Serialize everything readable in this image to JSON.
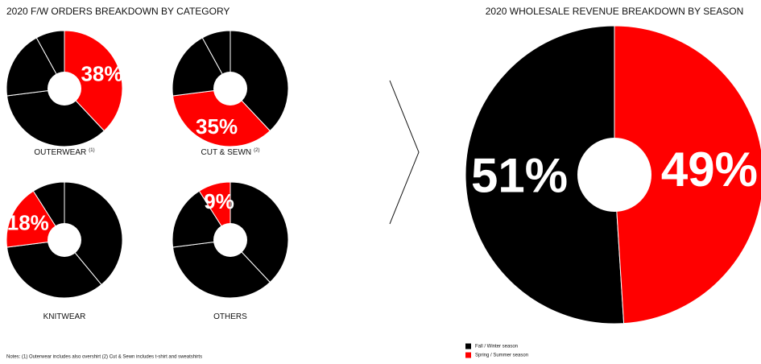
{
  "left_title": "2020 F/W ORDERS BREAKDOWN BY CATEGORY",
  "notes": "Notes: (1) Outerwear includes also overshirt (2) Cut & Sewn includes t-shirt and sweatshirts",
  "chart_data": [
    {
      "type": "pie",
      "title": "OUTERWEAR",
      "title_note": "(1)",
      "values": [
        38,
        35,
        19,
        8
      ],
      "colors": [
        "#ff0000",
        "#000000",
        "#000000",
        "#000000"
      ],
      "value_labels": [
        "38%",
        null,
        null,
        null
      ],
      "hole": true,
      "direction": "clockwise"
    },
    {
      "type": "pie",
      "title": "CUT & SEWN",
      "title_note": "(2)",
      "values": [
        38,
        35,
        19,
        8
      ],
      "colors": [
        "#000000",
        "#ff0000",
        "#000000",
        "#000000"
      ],
      "value_labels": [
        null,
        "35%",
        null,
        null
      ],
      "hole": true,
      "direction": "clockwise"
    },
    {
      "type": "pie",
      "title": "KNITWEAR",
      "values": [
        39,
        34,
        18,
        9
      ],
      "colors": [
        "#000000",
        "#000000",
        "#ff0000",
        "#000000"
      ],
      "value_labels": [
        null,
        null,
        "18%",
        null
      ],
      "hole": true,
      "direction": "clockwise"
    },
    {
      "type": "pie",
      "title": "OTHERS",
      "values": [
        38,
        35,
        18,
        9
      ],
      "colors": [
        "#000000",
        "#000000",
        "#000000",
        "#ff0000"
      ],
      "value_labels": [
        null,
        null,
        null,
        "9%"
      ],
      "hole": true,
      "direction": "clockwise"
    },
    {
      "type": "pie",
      "title": "2020 WHOLESALE REVENUE BREAKDOWN BY SEASON",
      "categories": [
        "Fall / Winter season",
        "Spring / Summer season"
      ],
      "values": [
        51,
        49
      ],
      "colors": [
        "#000000",
        "#ff0000"
      ],
      "value_labels": [
        "51%",
        "49%"
      ],
      "hole": true,
      "direction": "counterclockwise",
      "legend": "bottom-left"
    }
  ]
}
